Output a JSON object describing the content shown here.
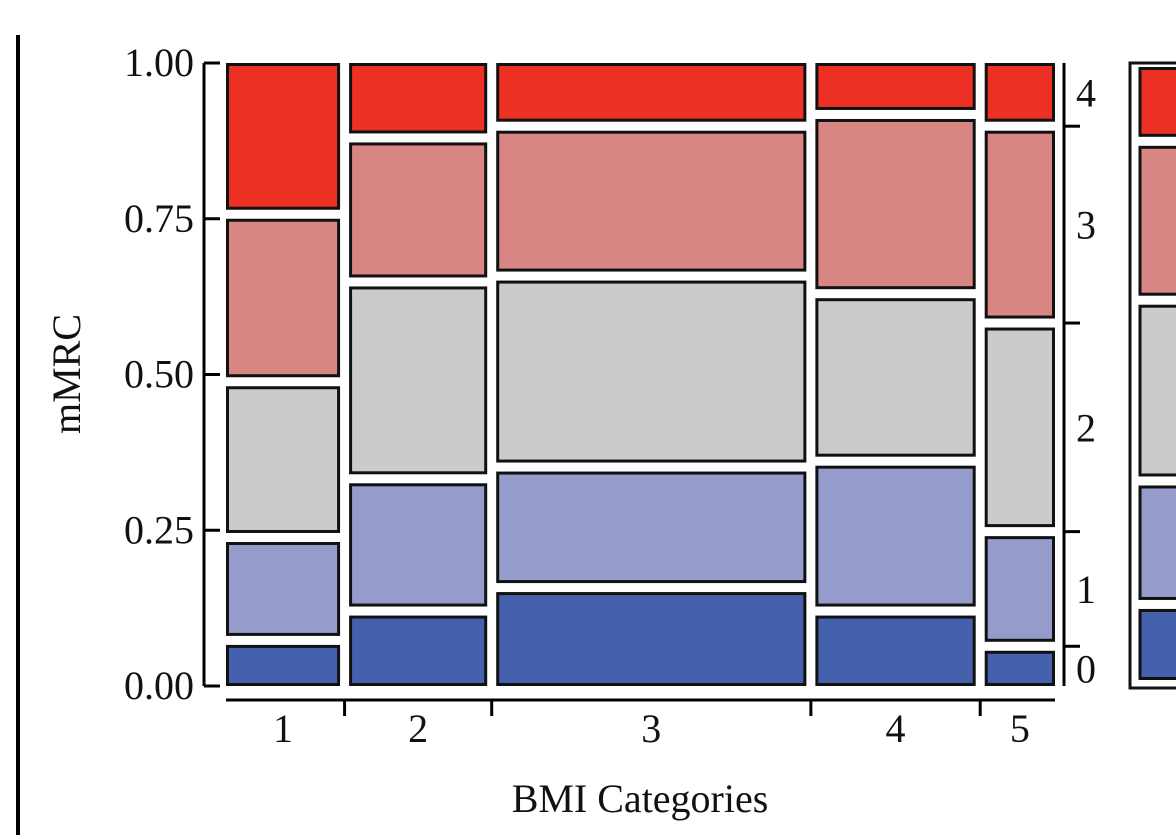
{
  "chart_data": {
    "type": "mosaic",
    "xlabel": "BMI Categories",
    "ylabel": "mMRC",
    "ylim": [
      0,
      1
    ],
    "y_ticks": [
      "0.00",
      "0.25",
      "0.50",
      "0.75",
      "1.00"
    ],
    "categories": [
      "1",
      "2",
      "3",
      "4",
      "5"
    ],
    "column_widths": [
      0.185,
      0.224,
      0.503,
      0.26,
      0.114
    ],
    "levels": [
      "0",
      "1",
      "2",
      "3",
      "4"
    ],
    "level_colors": [
      "#4560ac",
      "#959ccc",
      "#cbcbcb",
      "#d78683",
      "#ec3023"
    ],
    "proportions": [
      [
        0.07,
        0.16,
        0.25,
        0.27,
        0.25
      ],
      [
        0.12,
        0.21,
        0.32,
        0.23,
        0.12
      ],
      [
        0.16,
        0.19,
        0.31,
        0.24,
        0.1
      ],
      [
        0.12,
        0.24,
        0.27,
        0.29,
        0.08
      ],
      [
        0.06,
        0.18,
        0.34,
        0.32,
        0.1
      ]
    ]
  }
}
